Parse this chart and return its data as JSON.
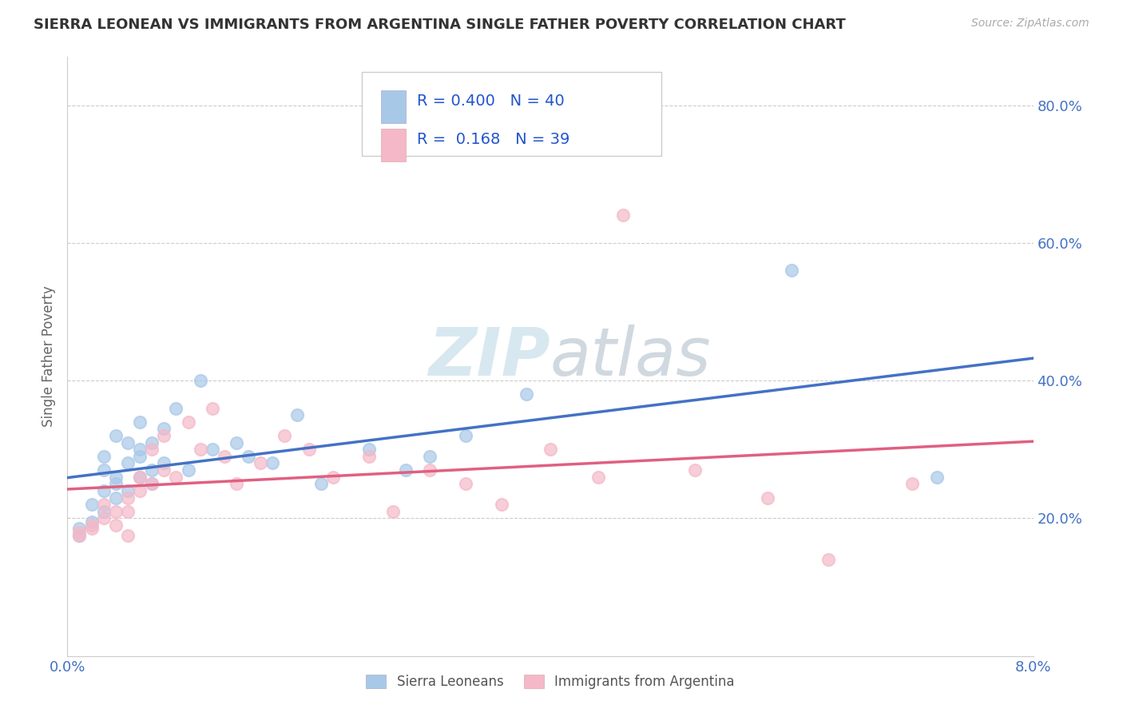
{
  "title": "SIERRA LEONEAN VS IMMIGRANTS FROM ARGENTINA SINGLE FATHER POVERTY CORRELATION CHART",
  "source": "Source: ZipAtlas.com",
  "ylabel": "Single Father Poverty",
  "xlim": [
    0.0,
    0.08
  ],
  "ylim": [
    0.0,
    0.87
  ],
  "ytick_vals": [
    0.0,
    0.2,
    0.4,
    0.6,
    0.8
  ],
  "ytick_labels": [
    "",
    "20.0%",
    "40.0%",
    "60.0%",
    "80.0%"
  ],
  "watermark_text": "ZIPatlas",
  "series1_color": "#a8c8e8",
  "series2_color": "#f4b8c8",
  "line1_color": "#4472c4",
  "line2_color": "#e06080",
  "tick_color": "#4472c4",
  "series1_label": "Sierra Leoneans",
  "series2_label": "Immigrants from Argentina",
  "R1": 0.4,
  "N1": 40,
  "R2": 0.168,
  "N2": 39,
  "sierra_x": [
    0.001,
    0.001,
    0.002,
    0.002,
    0.003,
    0.003,
    0.003,
    0.003,
    0.004,
    0.004,
    0.004,
    0.004,
    0.005,
    0.005,
    0.005,
    0.006,
    0.006,
    0.006,
    0.006,
    0.007,
    0.007,
    0.007,
    0.008,
    0.008,
    0.009,
    0.01,
    0.011,
    0.012,
    0.014,
    0.015,
    0.017,
    0.019,
    0.021,
    0.025,
    0.028,
    0.03,
    0.033,
    0.038,
    0.06,
    0.072
  ],
  "sierra_y": [
    0.175,
    0.185,
    0.195,
    0.22,
    0.24,
    0.27,
    0.29,
    0.21,
    0.23,
    0.25,
    0.32,
    0.26,
    0.28,
    0.31,
    0.24,
    0.29,
    0.26,
    0.3,
    0.34,
    0.27,
    0.31,
    0.25,
    0.33,
    0.28,
    0.36,
    0.27,
    0.4,
    0.3,
    0.31,
    0.29,
    0.28,
    0.35,
    0.25,
    0.3,
    0.27,
    0.29,
    0.32,
    0.38,
    0.56,
    0.26
  ],
  "argentina_x": [
    0.001,
    0.001,
    0.002,
    0.002,
    0.003,
    0.003,
    0.004,
    0.004,
    0.005,
    0.005,
    0.005,
    0.006,
    0.006,
    0.007,
    0.007,
    0.008,
    0.008,
    0.009,
    0.01,
    0.011,
    0.012,
    0.013,
    0.014,
    0.016,
    0.018,
    0.02,
    0.022,
    0.025,
    0.027,
    0.03,
    0.033,
    0.036,
    0.04,
    0.044,
    0.046,
    0.052,
    0.058,
    0.063,
    0.07
  ],
  "argentina_y": [
    0.175,
    0.18,
    0.19,
    0.185,
    0.2,
    0.22,
    0.21,
    0.19,
    0.175,
    0.21,
    0.23,
    0.26,
    0.24,
    0.3,
    0.25,
    0.32,
    0.27,
    0.26,
    0.34,
    0.3,
    0.36,
    0.29,
    0.25,
    0.28,
    0.32,
    0.3,
    0.26,
    0.29,
    0.21,
    0.27,
    0.25,
    0.22,
    0.3,
    0.26,
    0.64,
    0.27,
    0.23,
    0.14,
    0.25
  ]
}
